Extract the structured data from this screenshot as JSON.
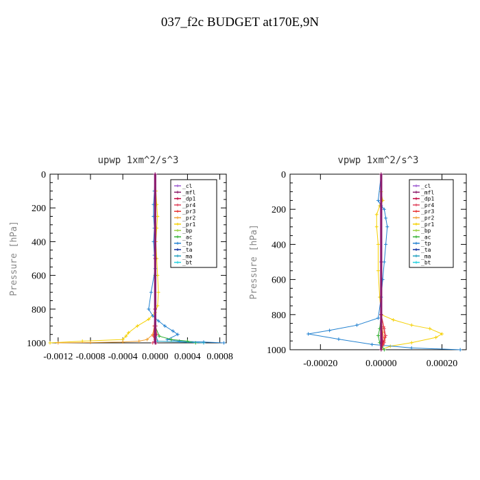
{
  "page": {
    "title": "037_f2c  BUDGET at170E,9N"
  },
  "legend_items": [
    {
      "label": "_cl",
      "color": "#9b59d0"
    },
    {
      "label": "_mfl",
      "color": "#8b1a6b"
    },
    {
      "label": "_dp1",
      "color": "#c0003c"
    },
    {
      "label": "_pr4",
      "color": "#e0405a"
    },
    {
      "label": "_pr3",
      "color": "#e83030"
    },
    {
      "label": "_pr2",
      "color": "#f0a030"
    },
    {
      "label": "_pr1",
      "color": "#f5d000"
    },
    {
      "label": "_bp",
      "color": "#9ad040"
    },
    {
      "label": "_ac",
      "color": "#30b030"
    },
    {
      "label": "_tp",
      "color": "#2080d0"
    },
    {
      "label": "_ta",
      "color": "#1030a0"
    },
    {
      "label": "_ma",
      "color": "#20a0c0"
    },
    {
      "label": "_bt",
      "color": "#20d0e0"
    }
  ],
  "chart_data": [
    {
      "type": "line",
      "title": "upwp  1xm^2/s^3",
      "ylabel": "Pressure [hPa]",
      "xlabel": "",
      "xlim": [
        -0.0013,
        0.00088
      ],
      "ylim": [
        1000,
        0
      ],
      "xticks": [
        -0.0012,
        -0.0008,
        -0.0004,
        0.0,
        0.0004,
        0.0008
      ],
      "xtick_labels": [
        "-0.0012",
        "-0.0008",
        "-0.0004",
        "0.0000",
        "0.0004",
        "0.0008"
      ],
      "yticks": [
        0,
        200,
        400,
        600,
        800,
        1000
      ],
      "ytick_labels": [
        "0",
        "200",
        "400",
        "600",
        "800",
        "1000"
      ],
      "legend_position": "top-right",
      "series": [
        {
          "name": "_pr1",
          "color": "#f5d000",
          "x": [
            0.0,
            1e-05,
            2e-05,
            3e-05,
            2e-05,
            1e-05,
            2e-05,
            3e-05,
            4e-05,
            3e-05,
            0.0,
            -8e-05,
            -0.00022,
            -0.00033,
            -0.00036,
            -0.0004,
            -0.0009,
            -0.0013
          ],
          "y": [
            0,
            100,
            180,
            250,
            320,
            400,
            500,
            600,
            700,
            780,
            820,
            860,
            900,
            940,
            960,
            980,
            990,
            1000
          ]
        },
        {
          "name": "_pr2",
          "color": "#f0a030",
          "x": [
            0.0,
            0.0,
            0.0,
            -1e-05,
            -3e-05,
            -0.0001,
            -0.0002,
            -0.0004,
            -0.0008,
            -0.0012
          ],
          "y": [
            0,
            400,
            800,
            900,
            950,
            980,
            990,
            995,
            998,
            1000
          ]
        },
        {
          "name": "_tp",
          "color": "#2080d0",
          "x": [
            0.0,
            -1e-05,
            -2e-05,
            -2e-05,
            -1e-05,
            -2e-05,
            -1e-05,
            0.0,
            -5e-05,
            -8e-05,
            -3e-05,
            4e-05,
            0.00012,
            0.00022,
            0.00028,
            0.00015,
            0.0003,
            0.0006,
            0.00085
          ],
          "y": [
            0,
            100,
            180,
            250,
            320,
            400,
            480,
            560,
            700,
            800,
            840,
            870,
            900,
            930,
            950,
            980,
            990,
            995,
            1000
          ]
        },
        {
          "name": "_ac",
          "color": "#30b030",
          "x": [
            0.0,
            0.0,
            0.0,
            5e-05,
            0.0002,
            0.0004,
            0.0005
          ],
          "y": [
            0,
            600,
            900,
            960,
            980,
            990,
            1000
          ]
        },
        {
          "name": "_ma",
          "color": "#20a0c0",
          "x": [
            0.0,
            0.0,
            1e-05,
            3e-05,
            0.0006
          ],
          "y": [
            0,
            800,
            950,
            990,
            1000
          ]
        },
        {
          "name": "_pr4",
          "color": "#e0405a",
          "x": [
            0.0,
            0.0,
            1e-05,
            2e-05,
            0.0,
            -3e-05
          ],
          "y": [
            0,
            800,
            900,
            950,
            980,
            1000
          ]
        },
        {
          "name": "_pr3",
          "color": "#e83030",
          "x": [
            0.0,
            0.0,
            -1e-05,
            -2e-05,
            0.0
          ],
          "y": [
            0,
            800,
            900,
            960,
            1000
          ]
        },
        {
          "name": "_dp1",
          "color": "#c0003c",
          "x": [
            0.0,
            0.0,
            0.0,
            1e-05
          ],
          "y": [
            0,
            500,
            950,
            1000
          ]
        },
        {
          "name": "_cl",
          "color": "#9b59d0",
          "x": [
            0.0,
            0.0,
            0.0
          ],
          "y": [
            0,
            500,
            1000
          ]
        },
        {
          "name": "_mfl",
          "color": "#8b1a6b",
          "x": [
            0.0,
            0.0,
            0.0
          ],
          "y": [
            0,
            500,
            1000
          ]
        }
      ]
    },
    {
      "type": "line",
      "title": "vpwp  1xm^2/s^3",
      "ylabel": "Pressure [hPa]",
      "xlabel": "",
      "xlim": [
        -0.0003,
        0.00028
      ],
      "ylim": [
        1000,
        0
      ],
      "xticks": [
        -0.0002,
        0.0,
        0.0002
      ],
      "xtick_labels": [
        "-0.00020",
        "0.00000",
        "0.00020"
      ],
      "yticks": [
        0,
        200,
        400,
        600,
        800,
        1000
      ],
      "ytick_labels": [
        "0",
        "200",
        "400",
        "600",
        "800",
        "1000"
      ],
      "legend_position": "top-right",
      "series": [
        {
          "name": "_pr1",
          "color": "#f5d000",
          "x": [
            0.0,
            0.0,
            5e-06,
            -5e-06,
            -1.5e-05,
            -1.5e-05,
            -1e-05,
            -1e-05,
            -5e-06,
            0.0,
            4e-05,
            0.0001,
            0.00016,
            0.0002,
            0.00018,
            0.0001,
            3e-05,
            0.0
          ],
          "y": [
            0,
            100,
            150,
            180,
            230,
            300,
            400,
            550,
            700,
            800,
            830,
            860,
            880,
            910,
            930,
            960,
            980,
            1000
          ]
        },
        {
          "name": "_tp",
          "color": "#2080d0",
          "x": [
            0.0,
            -1e-05,
            0.0,
            1e-05,
            1.5e-05,
            2e-05,
            1.5e-05,
            1e-05,
            5e-06,
            0.0,
            -1e-05,
            -8e-05,
            -0.00017,
            -0.00024,
            -0.00014,
            -3e-05,
            0.0001,
            0.00026
          ],
          "y": [
            0,
            150,
            180,
            200,
            250,
            300,
            400,
            500,
            600,
            700,
            820,
            860,
            890,
            910,
            940,
            970,
            990,
            1000
          ]
        },
        {
          "name": "_pr2",
          "color": "#f0a030",
          "x": [
            0.0,
            0.0,
            5e-06,
            1e-05,
            5e-06,
            0.0
          ],
          "y": [
            0,
            800,
            900,
            950,
            980,
            1000
          ]
        },
        {
          "name": "_pr4",
          "color": "#e0405a",
          "x": [
            0.0,
            0.0,
            1e-05,
            1.5e-05,
            1e-05,
            0.0
          ],
          "y": [
            0,
            800,
            880,
            920,
            960,
            1000
          ]
        },
        {
          "name": "_pr3",
          "color": "#e83030",
          "x": [
            0.0,
            0.0,
            8e-06,
            1.2e-05,
            5e-06,
            0.0
          ],
          "y": [
            0,
            800,
            870,
            930,
            970,
            1000
          ]
        },
        {
          "name": "_ac",
          "color": "#30b030",
          "x": [
            0.0,
            0.0,
            -5e-06,
            -1e-05,
            -5e-06,
            1e-05
          ],
          "y": [
            0,
            800,
            880,
            920,
            960,
            1000
          ]
        },
        {
          "name": "_dp1",
          "color": "#c0003c",
          "x": [
            0.0,
            0.0,
            5e-06,
            0.0
          ],
          "y": [
            0,
            800,
            950,
            1000
          ]
        },
        {
          "name": "_cl",
          "color": "#9b59d0",
          "x": [
            0.0,
            0.0,
            0.0
          ],
          "y": [
            0,
            500,
            1000
          ]
        },
        {
          "name": "_mfl",
          "color": "#8b1a6b",
          "x": [
            0.0,
            0.0,
            0.0
          ],
          "y": [
            0,
            500,
            1000
          ]
        }
      ]
    }
  ]
}
